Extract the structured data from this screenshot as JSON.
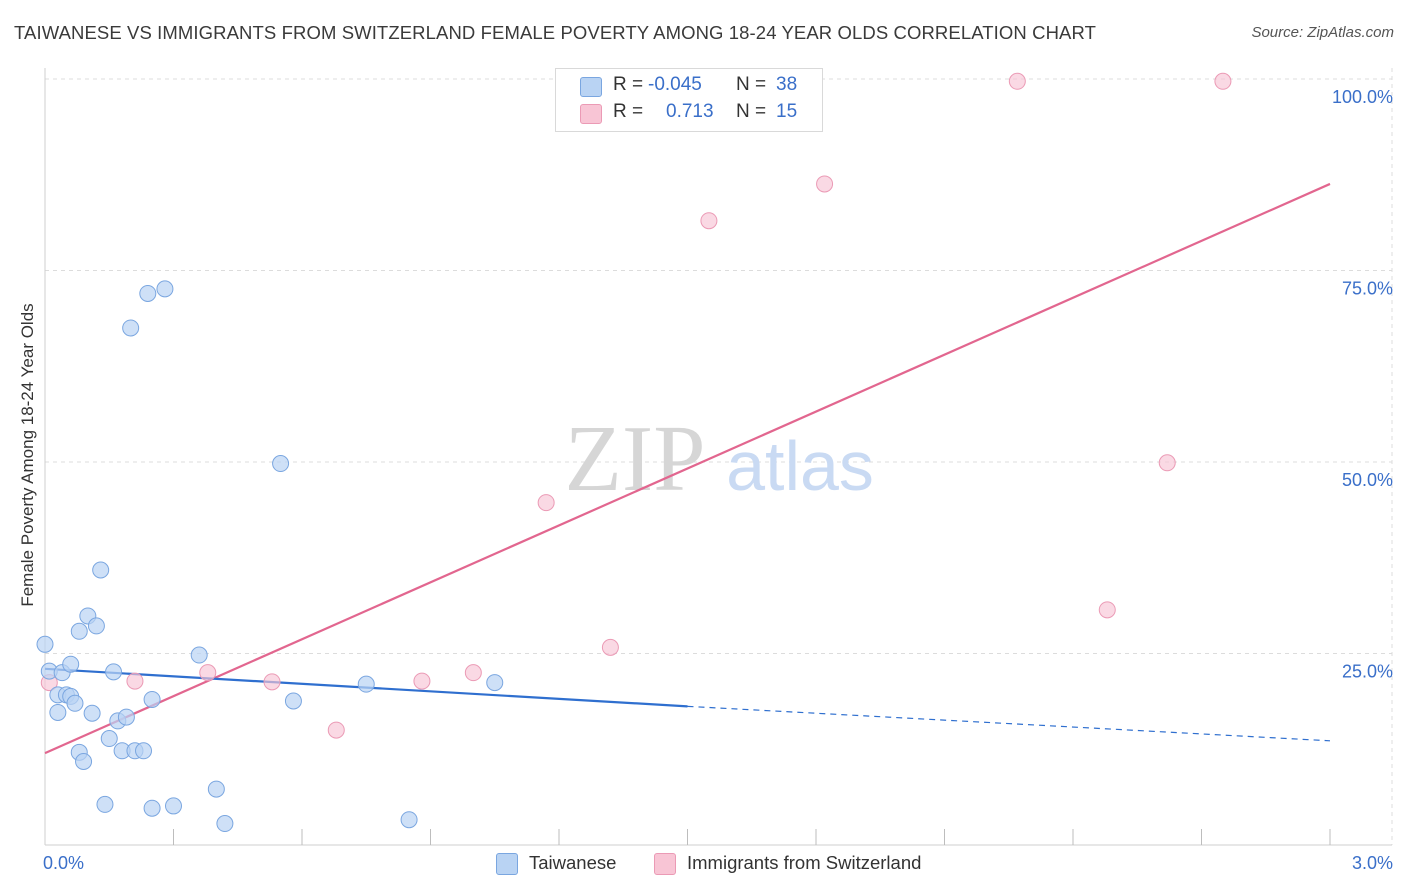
{
  "title": "TAIWANESE VS IMMIGRANTS FROM SWITZERLAND FEMALE POVERTY AMONG 18-24 YEAR OLDS CORRELATION CHART",
  "source": "Source: ZipAtlas.com",
  "watermark": {
    "zip": "ZIP",
    "atlas": "atlas"
  },
  "legend": {
    "r_label": "R =",
    "n_label": "N =",
    "series": [
      {
        "name": "Taiwanese",
        "r": "-0.045",
        "n": "38"
      },
      {
        "name": "Immigrants from Switzerland",
        "r": "0.713",
        "n": "15"
      }
    ]
  },
  "colors": {
    "blue_fill": "#b9d3f3",
    "blue_stroke": "#7aa6e0",
    "blue_line": "#2f6fcf",
    "pink_fill": "#f8c5d5",
    "pink_stroke": "#eb9ab5",
    "pink_line": "#e2668f",
    "axis_text": "#3a6fc9",
    "grid": "#dcdcdc"
  },
  "chart_data": {
    "type": "scatter",
    "title": "TAIWANESE VS IMMIGRANTS FROM SWITZERLAND FEMALE POVERTY AMONG 18-24 YEAR OLDS CORRELATION CHART",
    "xlabel": "",
    "ylabel": "Female Poverty Among 18-24 Year Olds",
    "xlim": [
      0,
      3.0
    ],
    "ylim": [
      0,
      100
    ],
    "x_tick_labels": {
      "min": "0.0%",
      "max": "3.0%"
    },
    "y_ticks": [
      25,
      50,
      75,
      100
    ],
    "y_tick_labels": [
      "25.0%",
      "50.0%",
      "75.0%",
      "100.0%"
    ],
    "grid": true,
    "series": [
      {
        "name": "Taiwanese",
        "points": [
          [
            0.0,
            26.2
          ],
          [
            0.01,
            22.7
          ],
          [
            0.03,
            19.6
          ],
          [
            0.03,
            17.3
          ],
          [
            0.04,
            22.5
          ],
          [
            0.05,
            19.6
          ],
          [
            0.06,
            23.6
          ],
          [
            0.06,
            19.4
          ],
          [
            0.07,
            18.5
          ],
          [
            0.08,
            12.1
          ],
          [
            0.08,
            27.9
          ],
          [
            0.09,
            10.9
          ],
          [
            0.1,
            29.9
          ],
          [
            0.11,
            17.2
          ],
          [
            0.12,
            28.6
          ],
          [
            0.13,
            35.9
          ],
          [
            0.14,
            5.3
          ],
          [
            0.15,
            13.9
          ],
          [
            0.16,
            22.6
          ],
          [
            0.17,
            16.2
          ],
          [
            0.18,
            12.3
          ],
          [
            0.19,
            16.7
          ],
          [
            0.2,
            67.5
          ],
          [
            0.21,
            12.3
          ],
          [
            0.23,
            12.3
          ],
          [
            0.24,
            72.0
          ],
          [
            0.25,
            19.0
          ],
          [
            0.25,
            4.8
          ],
          [
            0.28,
            72.6
          ],
          [
            0.3,
            5.1
          ],
          [
            0.36,
            24.8
          ],
          [
            0.4,
            7.3
          ],
          [
            0.42,
            2.8
          ],
          [
            0.55,
            49.8
          ],
          [
            0.58,
            18.8
          ],
          [
            0.75,
            21.0
          ],
          [
            0.85,
            3.3
          ],
          [
            1.05,
            21.2
          ]
        ],
        "trend": {
          "x0": 0.0,
          "y0": 23.0,
          "x1": 1.5,
          "y1": 18.1,
          "dash_to_x": 3.0,
          "dash_to_y": 13.6
        }
      },
      {
        "name": "Immigrants from Switzerland",
        "points": [
          [
            0.01,
            21.2
          ],
          [
            0.21,
            21.4
          ],
          [
            0.38,
            22.5
          ],
          [
            0.53,
            21.3
          ],
          [
            0.68,
            15.0
          ],
          [
            0.88,
            21.4
          ],
          [
            1.0,
            22.5
          ],
          [
            1.17,
            44.7
          ],
          [
            1.32,
            25.8
          ],
          [
            1.55,
            81.5
          ],
          [
            1.82,
            86.3
          ],
          [
            2.27,
            99.7
          ],
          [
            2.48,
            30.7
          ],
          [
            2.62,
            49.9
          ],
          [
            2.75,
            99.7
          ]
        ],
        "trend": {
          "x0": 0.0,
          "y0": 12.0,
          "x1": 3.0,
          "y1": 86.3
        }
      }
    ]
  }
}
